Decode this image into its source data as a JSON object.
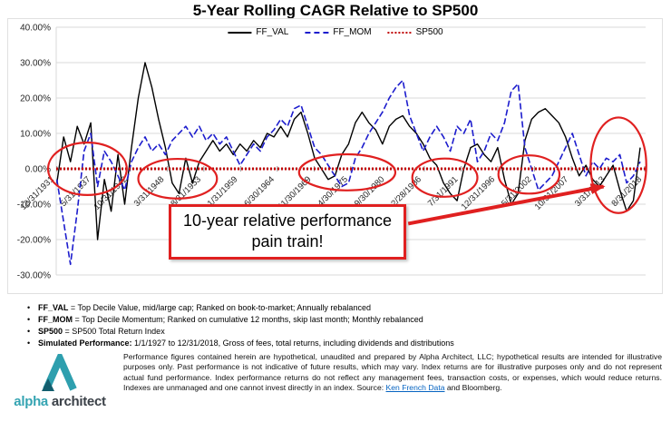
{
  "chart_data": {
    "type": "line",
    "title": "5-Year Rolling CAGR Relative to SP500",
    "xlim": [
      1931.9,
      2018.8
    ],
    "ylim": [
      -30,
      40
    ],
    "colors": {
      "grid": "#d9d9d9",
      "axis_text": "#262626",
      "annotation": "#e02020"
    },
    "yticks": [
      {
        "value": 40,
        "label": "40.00%"
      },
      {
        "value": 30,
        "label": "30.00%"
      },
      {
        "value": 20,
        "label": "20.00%"
      },
      {
        "value": 10,
        "label": "10.00%"
      },
      {
        "value": 0,
        "label": "0.00%"
      },
      {
        "value": -10,
        "label": "-10.00%"
      },
      {
        "value": -20,
        "label": "-20.00%"
      },
      {
        "value": -30,
        "label": "-30.00%"
      }
    ],
    "xticks": [
      {
        "year": 1932.0,
        "label": "12/31/1931"
      },
      {
        "year": 1937.42,
        "label": "5/31/1937"
      },
      {
        "year": 1942.83,
        "label": "10/31/1942"
      },
      {
        "year": 1948.25,
        "label": "3/31/1948"
      },
      {
        "year": 1953.67,
        "label": "8/31/1953"
      },
      {
        "year": 1959.08,
        "label": "1/31/1959"
      },
      {
        "year": 1964.5,
        "label": "6/30/1964"
      },
      {
        "year": 1969.92,
        "label": "11/30/1969"
      },
      {
        "year": 1975.33,
        "label": "4/30/1975"
      },
      {
        "year": 1980.75,
        "label": "9/30/1980"
      },
      {
        "year": 1986.17,
        "label": "2/28/1986"
      },
      {
        "year": 1991.58,
        "label": "7/31/1991"
      },
      {
        "year": 1997.0,
        "label": "12/31/1996"
      },
      {
        "year": 2002.42,
        "label": "5/31/2002"
      },
      {
        "year": 2007.83,
        "label": "10/31/2007"
      },
      {
        "year": 2013.25,
        "label": "3/31/2013"
      },
      {
        "year": 2018.67,
        "label": "8/31/2018"
      }
    ],
    "series": [
      {
        "name": "FF_VAL",
        "color": "#000000",
        "dash": "none",
        "width": 1.4,
        "x_start": 1932,
        "x_step": 1,
        "values": [
          -4,
          9,
          2,
          12,
          7,
          13,
          -20,
          -3,
          -12,
          4,
          -10,
          6,
          20,
          30,
          23,
          14,
          6,
          -4,
          -7,
          3,
          -4,
          2,
          5,
          8,
          5,
          7,
          4,
          7,
          5,
          8,
          6,
          10,
          9,
          12,
          9,
          14,
          16,
          10,
          3,
          0,
          -3,
          -2,
          4,
          7,
          13,
          16,
          13,
          11,
          7,
          12,
          14,
          15,
          12,
          10,
          7,
          3,
          1,
          -4,
          -7,
          -9,
          0,
          6,
          7,
          4,
          2,
          6,
          -3,
          -10,
          -7,
          8,
          14,
          16,
          17,
          15,
          13,
          9,
          3,
          -2,
          1,
          -3,
          -5,
          -2,
          1,
          -6,
          -12,
          -9,
          6
        ]
      },
      {
        "name": "FF_MOM",
        "color": "#1c1ccd",
        "dash": "7 3",
        "width": 1.6,
        "x_start": 1932,
        "x_step": 1,
        "values": [
          -3,
          -15,
          -27,
          -12,
          5,
          10,
          -5,
          5,
          2,
          -2,
          -6,
          2,
          6,
          9,
          5,
          7,
          4,
          8,
          10,
          12,
          9,
          12,
          8,
          10,
          7,
          9,
          5,
          1,
          4,
          7,
          5,
          9,
          11,
          14,
          12,
          17,
          18,
          12,
          6,
          4,
          1,
          -2,
          -5,
          -4,
          3,
          6,
          10,
          13,
          16,
          20,
          23,
          25,
          15,
          10,
          5,
          9,
          12,
          9,
          5,
          12,
          10,
          14,
          2,
          5,
          10,
          8,
          13,
          22,
          24,
          6,
          0,
          -6,
          -4,
          -2,
          2,
          6,
          10,
          4,
          -2,
          2,
          0,
          3,
          2,
          4,
          -4,
          -2,
          2
        ]
      },
      {
        "name": "SP500",
        "color": "#c00000",
        "dash": "2 2",
        "width": 3,
        "x": [
          1931.9,
          2018.8
        ],
        "values": [
          0,
          0
        ]
      }
    ],
    "annotations": {
      "ellipses": [
        {
          "cx": 1936.5,
          "cy": 0.0,
          "rx": 5.8,
          "ry": 7.4
        },
        {
          "cx": 1949.8,
          "cy": -2.8,
          "rx": 5.8,
          "ry": 5.6
        },
        {
          "cx": 1974.8,
          "cy": -1.0,
          "rx": 7.1,
          "ry": 5.1
        },
        {
          "cx": 1989.2,
          "cy": -2.5,
          "rx": 4.8,
          "ry": 5.4
        },
        {
          "cx": 2001.6,
          "cy": -1.6,
          "rx": 4.5,
          "ry": 5.4
        },
        {
          "cx": 2014.8,
          "cy": 1.0,
          "rx": 4.1,
          "ry": 13.5
        }
      ],
      "arrow": {
        "x1": 1983.8,
        "y1": -15.5,
        "x2": 2012.6,
        "y2": -5.0
      },
      "callout_text": "10-year relative performance pain train!"
    }
  },
  "footnotes": [
    {
      "term": "FF_VAL",
      "rest": " = Top Decile Value, mid/large cap; Ranked on book-to-market; Annually rebalanced"
    },
    {
      "term": "FF_MOM",
      "rest": " = Top Decile Momentum; Ranked on cumulative 12 months, skip last month; Monthly rebalanced"
    },
    {
      "term": "SP500",
      "rest": " = SP500 Total Return Index"
    },
    {
      "term": "Simulated Performance:",
      "rest": " 1/1/1927 to 12/31/2018, Gross of fees, total returns, including dividends and distributions"
    }
  ],
  "footer": {
    "brand_alpha": "alpha",
    "brand_architect": "architect",
    "disclaimer": {
      "body": "Performance figures contained herein are hypothetical, unaudited and prepared by Alpha Architect, LLC; hypothetical results are intended for illustrative purposes only. Past performance is not indicative of future results, which may vary. Index returns are for illustrative purposes only and do not represent actual fund performance.  Index performance returns do not reflect any management fees, transaction costs, or expenses, which would reduce returns.  Indexes are unmanaged and one cannot invest directly in an index. Source: ",
      "link": "Ken French Data",
      "tail": " and Bloomberg."
    }
  }
}
